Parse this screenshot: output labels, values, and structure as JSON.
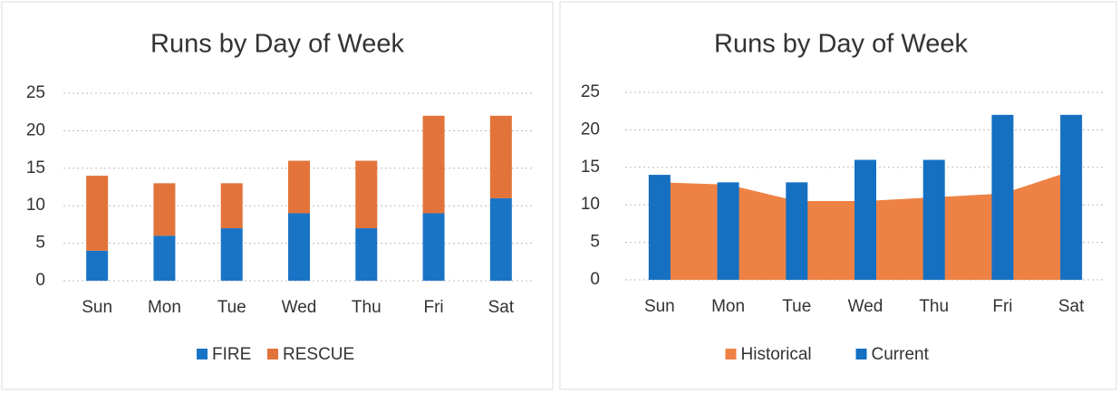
{
  "chart_data": [
    {
      "type": "bar",
      "stacked": true,
      "title": "Runs by Day of Week",
      "categories": [
        "Sun",
        "Mon",
        "Tue",
        "Wed",
        "Thu",
        "Fri",
        "Sat"
      ],
      "series": [
        {
          "name": "FIRE",
          "color": "#1a74c6",
          "values": [
            4,
            6,
            7,
            9,
            7,
            9,
            11
          ]
        },
        {
          "name": "RESCUE",
          "color": "#e2733a",
          "values": [
            10,
            7,
            6,
            7,
            9,
            13,
            11
          ]
        }
      ],
      "ylim": [
        0,
        25
      ],
      "yticks": [
        0,
        5,
        10,
        15,
        20,
        25
      ],
      "grid": true,
      "legend": "bottom"
    },
    {
      "type": "combo",
      "title": "Runs by Day of Week",
      "categories": [
        "Sun",
        "Mon",
        "Tue",
        "Wed",
        "Thu",
        "Fri",
        "Sat"
      ],
      "series": [
        {
          "name": "Historical",
          "type": "area",
          "color": "#ee8245",
          "values": [
            13,
            12.7,
            10.5,
            10.5,
            11,
            11.5,
            14.5
          ]
        },
        {
          "name": "Current",
          "type": "bar",
          "color": "#1570c2",
          "values": [
            14,
            13,
            13,
            16,
            16,
            22,
            22
          ]
        }
      ],
      "ylim": [
        0,
        25
      ],
      "yticks": [
        0,
        5,
        10,
        15,
        20,
        25
      ],
      "grid": true,
      "legend": "bottom"
    }
  ]
}
